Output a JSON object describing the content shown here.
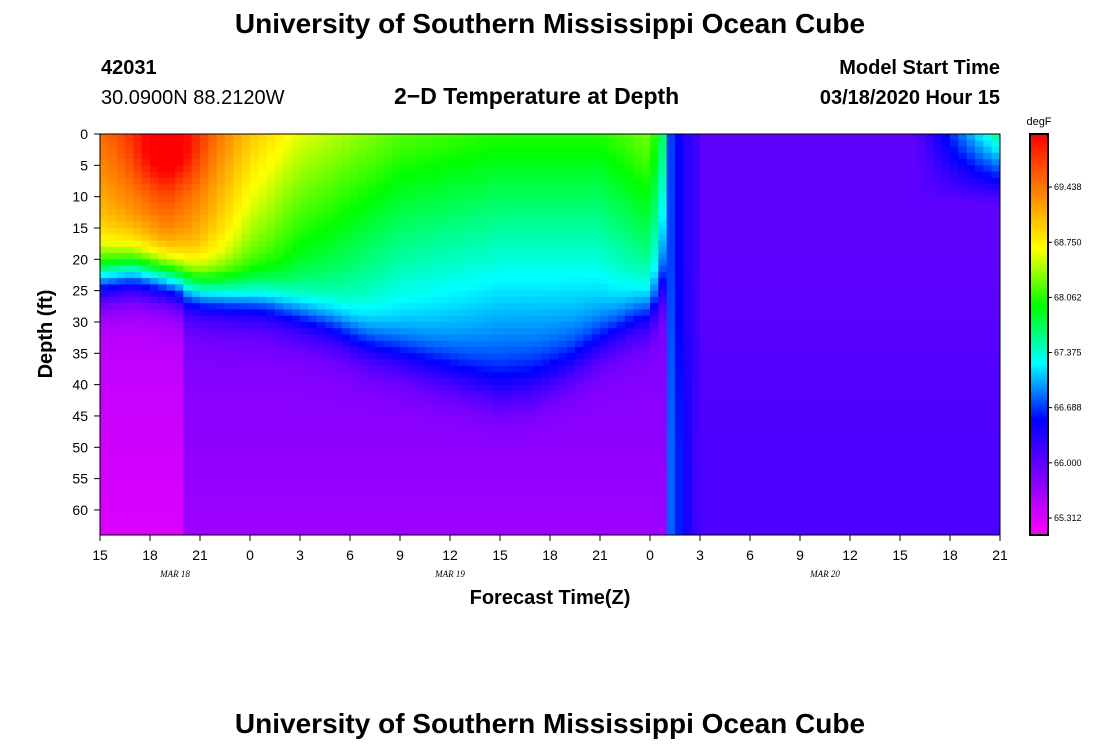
{
  "header": {
    "title": "University of Southern Mississippi Ocean Cube",
    "station_id": "42031",
    "location": "30.0900N 88.2120W",
    "subtitle": "2−D Temperature at Depth",
    "model_start_label": "Model Start Time",
    "model_start_value": "03/18/2020 Hour 15"
  },
  "footer": {
    "title": "University of Southern Mississippi Ocean Cube"
  },
  "chart_data": {
    "type": "heatmap",
    "title": "2−D Temperature at Depth",
    "xlabel": "Forecast Time(Z)",
    "ylabel": "Depth (ft)",
    "x_ticks": [
      "15",
      "18",
      "21",
      "0",
      "3",
      "6",
      "9",
      "12",
      "15",
      "18",
      "21",
      "0",
      "3",
      "6",
      "9",
      "12",
      "15",
      "18",
      "21"
    ],
    "day_labels": [
      {
        "label": "MAR 18",
        "tick_index": 1.5
      },
      {
        "label": "MAR 19",
        "tick_index": 7
      },
      {
        "label": "MAR 20",
        "tick_index": 14.5
      }
    ],
    "y_ticks": [
      0,
      5,
      10,
      15,
      20,
      25,
      30,
      35,
      40,
      45,
      50,
      55,
      60
    ],
    "ylim": [
      0,
      64
    ],
    "xlim_hours": [
      0,
      54
    ],
    "colorbar": {
      "unit": "degF",
      "labels": [
        "69.438",
        "68.750",
        "68.062",
        "67.375",
        "66.688",
        "66.000",
        "65.312"
      ],
      "min": 65.1,
      "max": 70.1
    },
    "isotherm_depth_ft": [
      {
        "hour": 0,
        "depth": 23
      },
      {
        "hour": 2,
        "depth": 22
      },
      {
        "hour": 4,
        "depth": 23
      },
      {
        "hour": 6,
        "depth": 25
      },
      {
        "hour": 8,
        "depth": 26
      },
      {
        "hour": 10,
        "depth": 27
      },
      {
        "hour": 12,
        "depth": 29
      },
      {
        "hour": 14,
        "depth": 31
      },
      {
        "hour": 16,
        "depth": 34
      },
      {
        "hour": 18,
        "depth": 36
      },
      {
        "hour": 20,
        "depth": 38
      },
      {
        "hour": 22,
        "depth": 40
      },
      {
        "hour": 24,
        "depth": 42
      },
      {
        "hour": 26,
        "depth": 41
      },
      {
        "hour": 28,
        "depth": 38
      },
      {
        "hour": 30,
        "depth": 34
      },
      {
        "hour": 32,
        "depth": 30
      },
      {
        "hour": 33,
        "depth": 29
      },
      {
        "hour": 34,
        "depth": 24
      },
      {
        "hour": 35,
        "depth": 12
      },
      {
        "hour": 36,
        "depth": 0
      }
    ],
    "warm_core": {
      "hour": 4,
      "depth": 3,
      "temp": 70.0
    },
    "surface_trend_degF": [
      {
        "hour": 0,
        "temp": 69.5
      },
      {
        "hour": 4,
        "temp": 70.0
      },
      {
        "hour": 6,
        "temp": 69.7
      },
      {
        "hour": 9,
        "temp": 69.0
      },
      {
        "hour": 12,
        "temp": 68.6
      },
      {
        "hour": 18,
        "temp": 68.2
      },
      {
        "hour": 24,
        "temp": 68.05
      },
      {
        "hour": 30,
        "temp": 68.05
      },
      {
        "hour": 33,
        "temp": 68.3
      },
      {
        "hour": 34.5,
        "temp": 67.1
      },
      {
        "hour": 36,
        "temp": 66.3
      },
      {
        "hour": 48,
        "temp": 66.1
      },
      {
        "hour": 51,
        "temp": 67.0
      },
      {
        "hour": 54,
        "temp": 67.7
      }
    ],
    "bottom_temp_degF": 65.3
  },
  "colors": {
    "colormap": [
      "#ff00ff",
      "#8000ff",
      "#0000ff",
      "#00ffff",
      "#00ff00",
      "#ffff00",
      "#ff8000",
      "#ff0000"
    ]
  }
}
